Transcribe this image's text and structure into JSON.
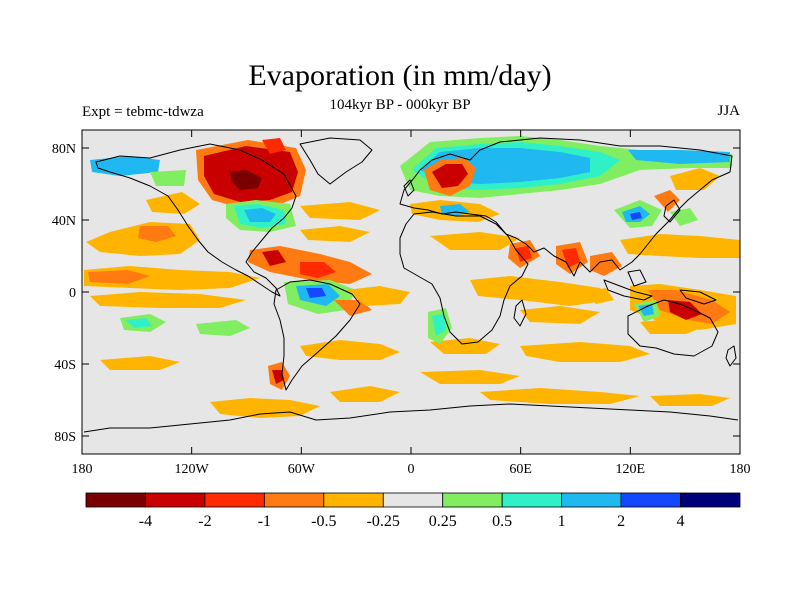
{
  "title": "Evaporation (in mm/day)",
  "subtitle": "104kyr BP - 000kyr BP",
  "experiment_label": "Expt = tebmc-tdwza",
  "season_label": "JJA",
  "map": {
    "projection": "cylindrical equidistant",
    "lon_range": [
      -180,
      180
    ],
    "lat_range": [
      -90,
      90
    ],
    "background_color": "#e6e6e6",
    "x_ticks": [
      {
        "lon": -180,
        "label": "180"
      },
      {
        "lon": -120,
        "label": "120W"
      },
      {
        "lon": -60,
        "label": "60W"
      },
      {
        "lon": 0,
        "label": "0"
      },
      {
        "lon": 60,
        "label": "60E"
      },
      {
        "lon": 120,
        "label": "120E"
      },
      {
        "lon": 180,
        "label": "180"
      }
    ],
    "y_ticks": [
      {
        "lat": 80,
        "label": "80N"
      },
      {
        "lat": 40,
        "label": "40N"
      },
      {
        "lat": 0,
        "label": "0"
      },
      {
        "lat": -40,
        "label": "40S"
      },
      {
        "lat": -80,
        "label": "80S"
      }
    ]
  },
  "colorbar": {
    "colors": [
      "#7a0000",
      "#c80000",
      "#ff2a00",
      "#ff7a10",
      "#ffb400",
      "#e6e6e6",
      "#80ee60",
      "#30f0c8",
      "#20b8f0",
      "#1448ff",
      "#00007a"
    ],
    "labels": [
      "-4",
      "-2",
      "-1",
      "-0.5",
      "-0.25",
      "0.25",
      "0.5",
      "1",
      "2",
      "4"
    ]
  }
}
